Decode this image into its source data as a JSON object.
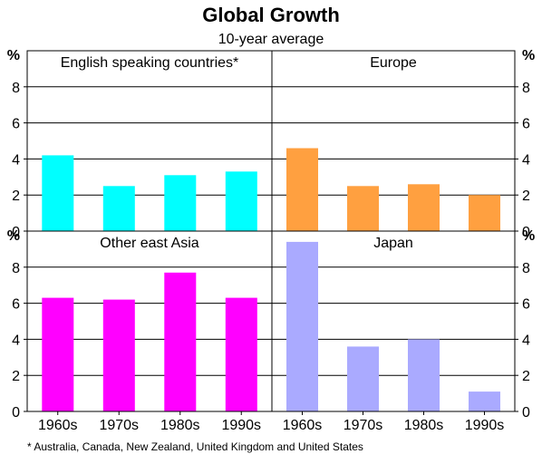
{
  "chart_data": {
    "type": "bar",
    "title": "Global Growth",
    "subtitle": "10-year average",
    "unit_label": "%",
    "categories": [
      "1960s",
      "1970s",
      "1980s",
      "1990s"
    ],
    "ylim": [
      0,
      10
    ],
    "yticks": [
      "0",
      "2",
      "4",
      "6",
      "8"
    ],
    "grid": true,
    "footnote": "* Australia, Canada, New Zealand, United Kingdom and United States",
    "panels": [
      {
        "name": "English speaking countries*",
        "color": "#00FFFF",
        "values": [
          4.2,
          2.5,
          3.1,
          3.3
        ]
      },
      {
        "name": "Europe",
        "color": "#FFA040",
        "values": [
          4.6,
          2.5,
          2.6,
          2.0
        ]
      },
      {
        "name": "Other east Asia",
        "color": "#FF00FF",
        "values": [
          6.3,
          6.2,
          7.7,
          6.3
        ]
      },
      {
        "name": "Japan",
        "color": "#AAAAFF",
        "values": [
          9.4,
          3.6,
          4.0,
          1.1
        ]
      }
    ]
  }
}
